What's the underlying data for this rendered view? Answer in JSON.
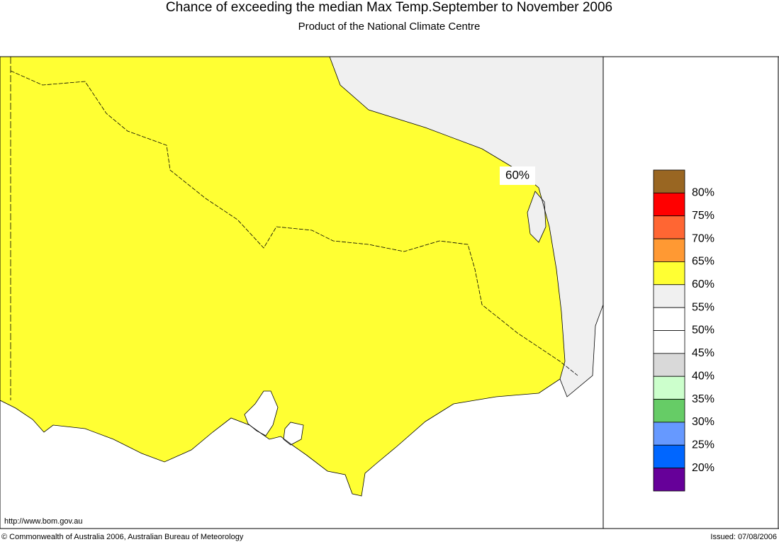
{
  "header": {
    "title": "Chance of exceeding the median Max Temp.September to November 2006",
    "subtitle": "Product of the National Climate Centre"
  },
  "map": {
    "contour_label": "60%",
    "url": "http://www.bom.gov.au"
  },
  "legend": {
    "colors": [
      "#996622",
      "#ff0000",
      "#ff6633",
      "#ff9933",
      "#ffff33",
      "#f0f0f0",
      "#ffffff",
      "#ffffff",
      "#d9d9d9",
      "#ccffcc",
      "#66cc66",
      "#6699ff",
      "#0066ff",
      "#660099"
    ],
    "labels": [
      "80%",
      "75%",
      "70%",
      "65%",
      "60%",
      "55%",
      "50%",
      "45%",
      "40%",
      "35%",
      "30%",
      "25%",
      "20%"
    ]
  },
  "footer": {
    "copyright": "© Commonwealth of Australia 2006, Australian Bureau of Meteorology",
    "issued": "Issued: 07/08/2006"
  }
}
